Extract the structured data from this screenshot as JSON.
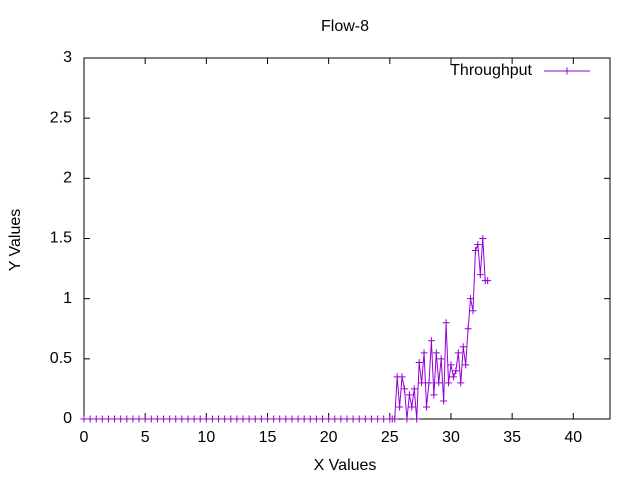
{
  "chart_data": {
    "type": "line",
    "title": "Flow-8",
    "xlabel": "X Values",
    "ylabel": "Y Values",
    "xlim": [
      0,
      43
    ],
    "ylim": [
      0,
      3
    ],
    "xticks": [
      0,
      5,
      10,
      15,
      20,
      25,
      30,
      35,
      40
    ],
    "yticks": [
      0,
      0.5,
      1,
      1.5,
      2,
      2.5,
      3
    ],
    "legend": "upper right",
    "series": [
      {
        "name": "Throughput",
        "color": "#9400d3",
        "x": [
          0,
          0.5,
          1,
          1.5,
          2,
          2.5,
          3,
          3.5,
          4,
          4.5,
          5,
          5.5,
          6,
          6.5,
          7,
          7.5,
          8,
          8.5,
          9,
          9.5,
          10,
          10.5,
          11,
          11.5,
          12,
          12.5,
          13,
          13.5,
          14,
          14.5,
          15,
          15.5,
          16,
          16.5,
          17,
          17.5,
          18,
          18.5,
          19,
          19.5,
          20,
          20.5,
          21,
          21.5,
          22,
          22.5,
          23,
          23.5,
          24,
          24.5,
          25,
          25.2,
          25.4,
          25.6,
          25.8,
          26,
          26.2,
          26.4,
          26.6,
          26.8,
          27,
          27.2,
          27.4,
          27.6,
          27.8,
          28,
          28.2,
          28.4,
          28.6,
          28.8,
          29,
          29.2,
          29.4,
          29.6,
          29.8,
          30,
          30.2,
          30.4,
          30.6,
          30.8,
          31,
          31.2,
          31.4,
          31.6,
          31.8,
          32,
          32.2,
          32.4,
          32.6,
          32.8,
          33
        ],
        "values": [
          0,
          0,
          0,
          0,
          0,
          0,
          0,
          0,
          0,
          0,
          0,
          0,
          0,
          0,
          0,
          0,
          0,
          0,
          0,
          0,
          0,
          0,
          0,
          0,
          0,
          0,
          0,
          0,
          0,
          0,
          0,
          0,
          0,
          0,
          0,
          0,
          0,
          0,
          0,
          0,
          0,
          0,
          0,
          0,
          0,
          0,
          0,
          0,
          0,
          0,
          0,
          0,
          0,
          0.35,
          0.1,
          0.35,
          0.25,
          0,
          0.2,
          0.1,
          0.25,
          0,
          0.47,
          0.3,
          0.55,
          0.1,
          0.3,
          0.65,
          0.2,
          0.55,
          0.3,
          0.5,
          0.15,
          0.8,
          0.3,
          0.45,
          0.35,
          0.4,
          0.55,
          0.3,
          0.6,
          0.45,
          0.75,
          1.0,
          0.9,
          1.4,
          1.45,
          1.2,
          1.5,
          1.15,
          1.15
        ]
      }
    ]
  }
}
